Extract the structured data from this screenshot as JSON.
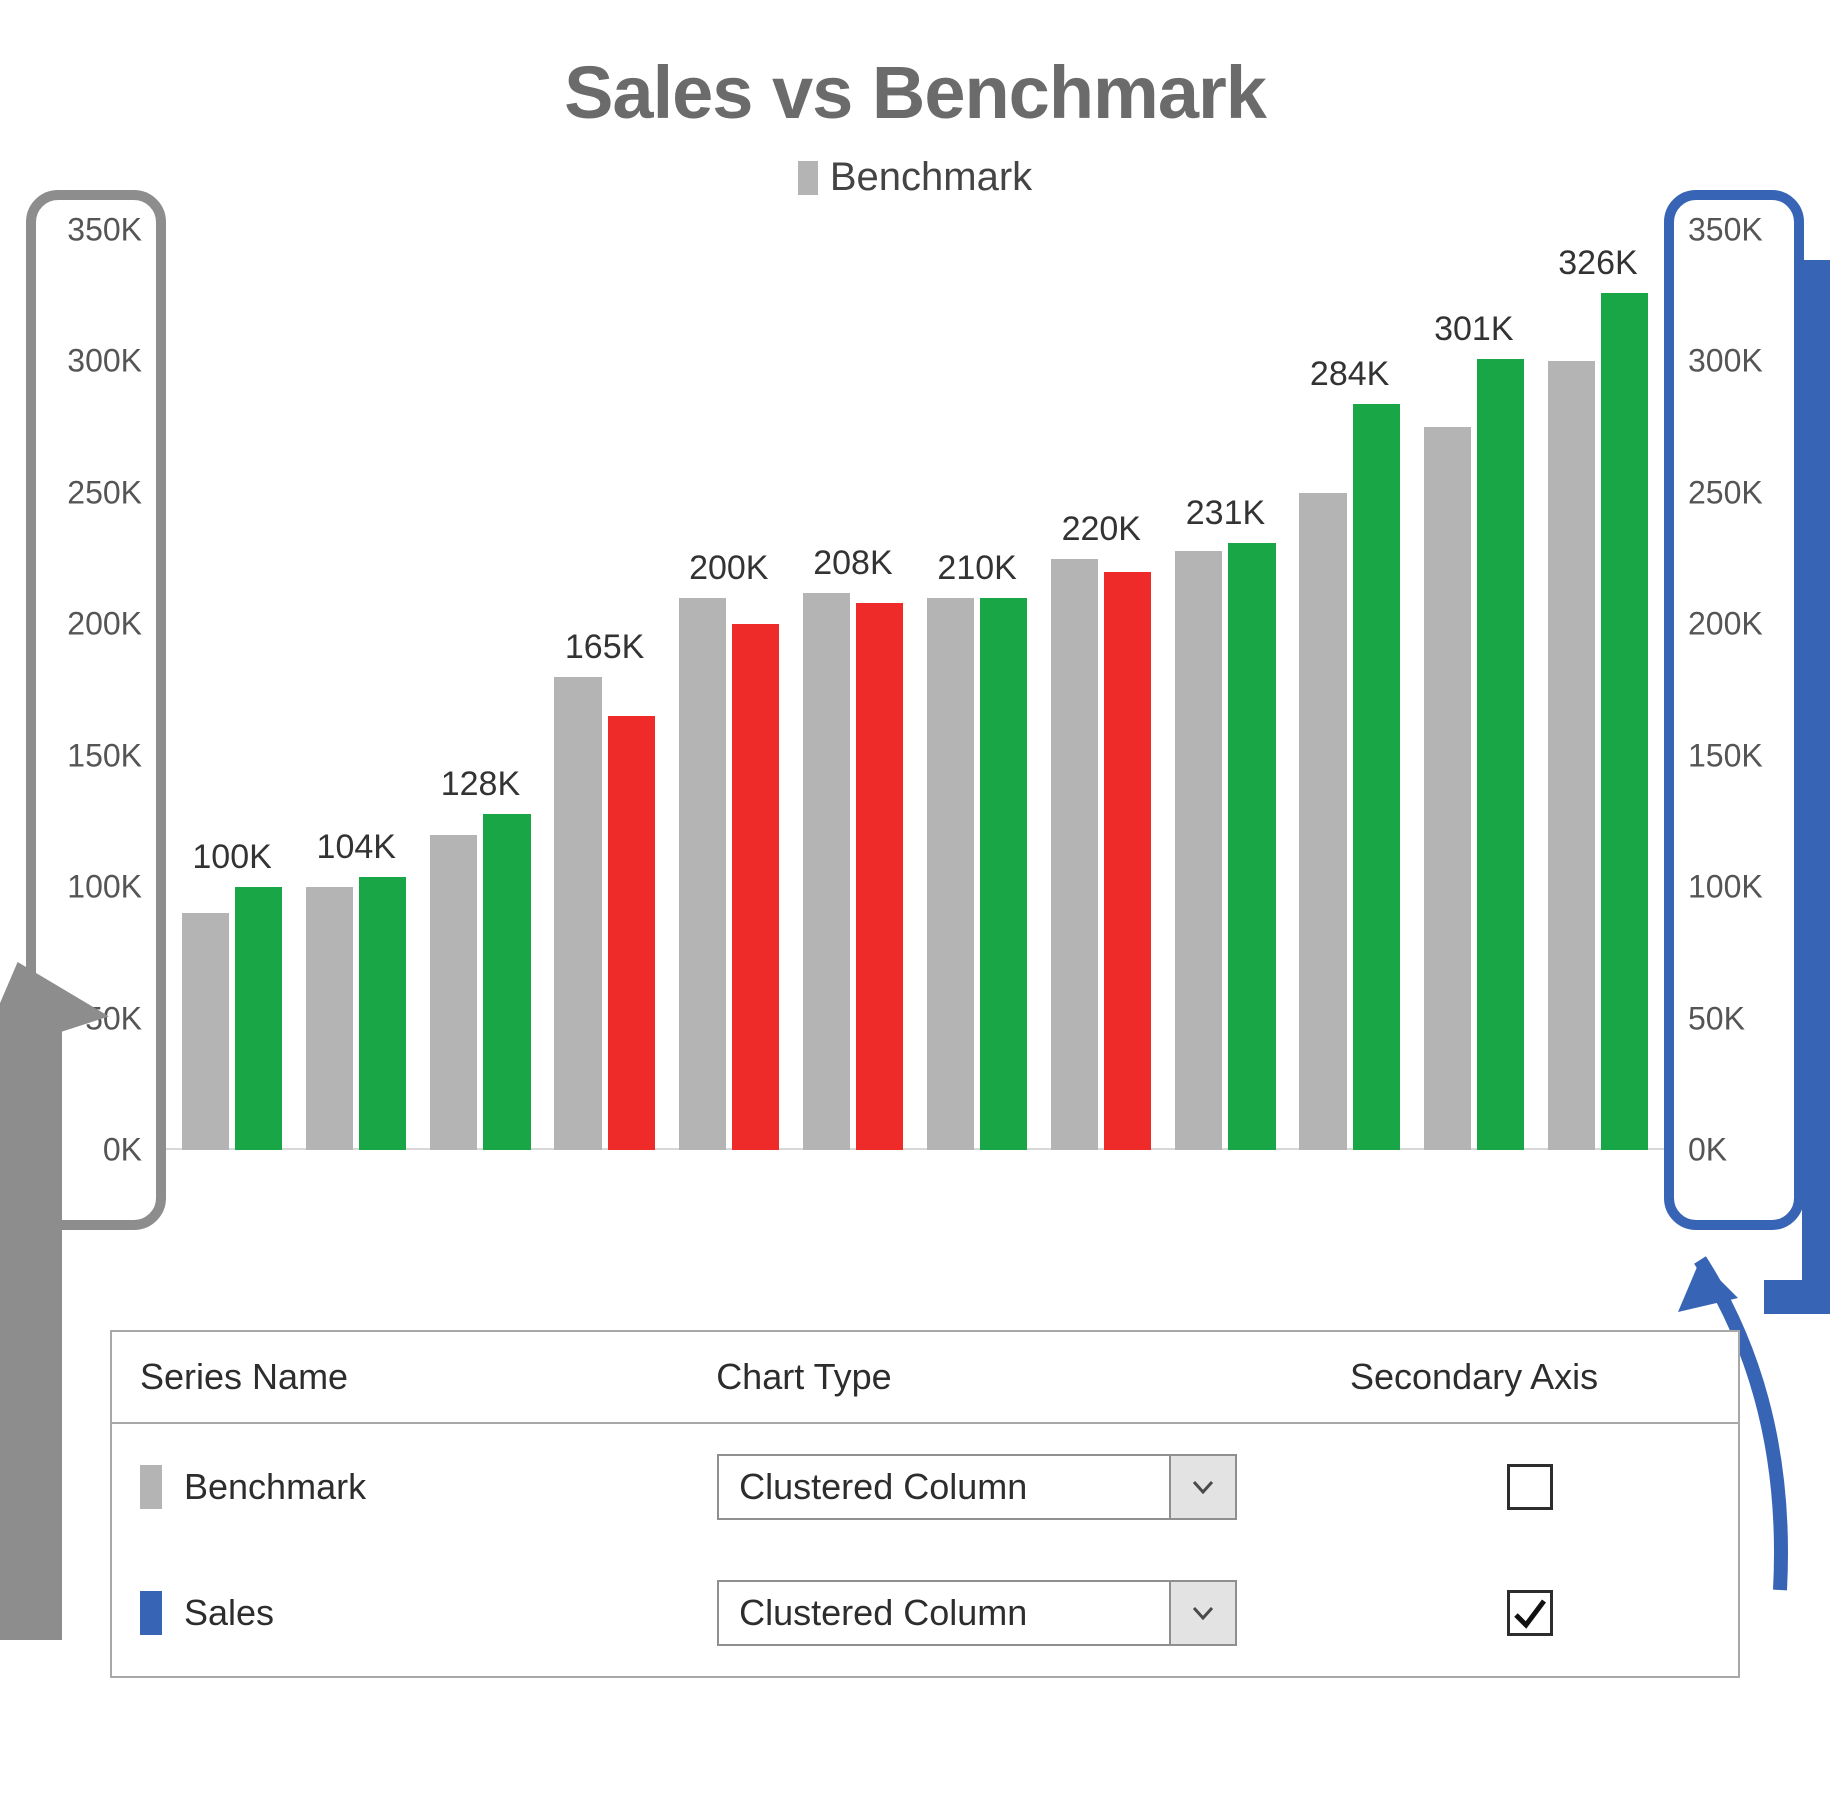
{
  "chart": {
    "title": "Sales vs Benchmark",
    "title_color": "#6b6b6b",
    "title_fontsize": 74,
    "title_fontweight": 800,
    "legend": {
      "text": "Benchmark",
      "swatch_color": "#b4b4b4",
      "fontsize": 40
    },
    "type": "clustered-column",
    "ymin": 0,
    "ymax": 350000,
    "ytick_step": 50000,
    "ytick_labels": [
      "0K",
      "50K",
      "100K",
      "150K",
      "200K",
      "250K",
      "300K",
      "350K"
    ],
    "tick_fontsize": 32,
    "data_label_fontsize": 34,
    "background_color": "#ffffff",
    "baseline_color": "#d8d8d8",
    "benchmark_color": "#b4b4b4",
    "sales_color_positive": "#18a646",
    "sales_color_negative": "#ee2b29",
    "bar_width_ratio": 0.38,
    "groups": [
      {
        "label": "100K",
        "benchmark": 90000,
        "sales": 100000,
        "sales_beats": true
      },
      {
        "label": "104K",
        "benchmark": 100000,
        "sales": 104000,
        "sales_beats": true
      },
      {
        "label": "128K",
        "benchmark": 120000,
        "sales": 128000,
        "sales_beats": true
      },
      {
        "label": "165K",
        "benchmark": 180000,
        "sales": 165000,
        "sales_beats": false
      },
      {
        "label": "200K",
        "benchmark": 210000,
        "sales": 200000,
        "sales_beats": false
      },
      {
        "label": "208K",
        "benchmark": 212000,
        "sales": 208000,
        "sales_beats": false
      },
      {
        "label": "210K",
        "benchmark": 210000,
        "sales": 210000,
        "sales_beats": true
      },
      {
        "label": "220K",
        "benchmark": 225000,
        "sales": 220000,
        "sales_beats": false
      },
      {
        "label": "231K",
        "benchmark": 228000,
        "sales": 231000,
        "sales_beats": true
      },
      {
        "label": "284K",
        "benchmark": 250000,
        "sales": 284000,
        "sales_beats": true
      },
      {
        "label": "301K",
        "benchmark": 275000,
        "sales": 301000,
        "sales_beats": true
      },
      {
        "label": "326K",
        "benchmark": 300000,
        "sales": 326000,
        "sales_beats": true
      }
    ]
  },
  "highlights": {
    "left_axis_box_color": "#8d8d8d",
    "right_axis_box_color": "#3864b6",
    "box_border_width": 10,
    "box_border_radius": 32
  },
  "config_table": {
    "headers": {
      "series": "Series Name",
      "chart_type": "Chart Type",
      "secondary": "Secondary Axis"
    },
    "header_fontsize": 36,
    "cell_fontsize": 36,
    "rows": [
      {
        "name": "Benchmark",
        "swatch_color": "#b4b4b4",
        "chart_type": "Clustered Column",
        "secondary_axis": false
      },
      {
        "name": "Sales",
        "swatch_color": "#3864b6",
        "chart_type": "Clustered Column",
        "secondary_axis": true
      }
    ],
    "border_color": "#a8a8a8",
    "dropdown_button_bg": "#e3e3e3"
  }
}
